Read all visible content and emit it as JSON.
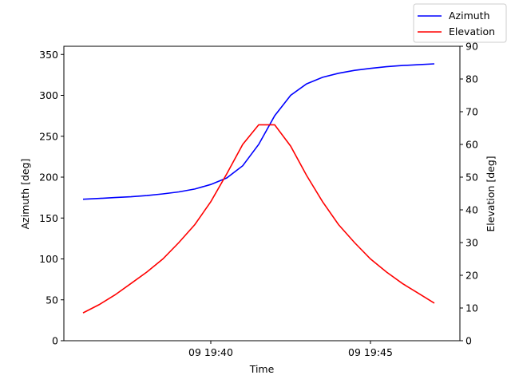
{
  "chart_data": {
    "type": "line",
    "title": "",
    "xlabel": "Time",
    "x_ticks": [
      {
        "minute": 40,
        "label": "09 19:40"
      },
      {
        "minute": 45,
        "label": "09 19:45"
      }
    ],
    "xlim_minutes": [
      35.4,
      47.8
    ],
    "x_minutes": [
      36,
      36.5,
      37,
      37.5,
      38,
      38.5,
      39,
      39.5,
      40,
      40.5,
      41,
      41.5,
      42,
      42.5,
      43,
      43.5,
      44,
      44.5,
      45,
      45.5,
      46,
      46.5,
      47
    ],
    "left_axis": {
      "label": "Azimuth [deg]",
      "ylim": [
        0,
        360
      ],
      "ticks": [
        0,
        50,
        100,
        150,
        200,
        250,
        300,
        350
      ]
    },
    "right_axis": {
      "label": "Elevation [deg]",
      "ylim": [
        0,
        90
      ],
      "ticks": [
        0,
        10,
        20,
        30,
        40,
        50,
        60,
        70,
        80,
        90
      ]
    },
    "series": [
      {
        "name": "Azimuth",
        "axis": "left",
        "color": "#0000ff",
        "values": [
          173,
          174,
          175,
          176,
          177.5,
          179.5,
          182,
          185.5,
          191,
          199,
          214,
          240,
          275,
          300,
          314,
          322,
          327,
          330.5,
          333,
          335,
          336.5,
          337.5,
          338.5
        ]
      },
      {
        "name": "Elevation",
        "axis": "right",
        "color": "#ff0000",
        "values": [
          8.5,
          11,
          14,
          17.5,
          21,
          25,
          30,
          35.5,
          42.5,
          51,
          60,
          66,
          66,
          59.5,
          50.5,
          42.5,
          35.5,
          30,
          25,
          21,
          17.5,
          14.5,
          11.5
        ]
      }
    ],
    "legend_position": "top-right",
    "grid": false
  }
}
